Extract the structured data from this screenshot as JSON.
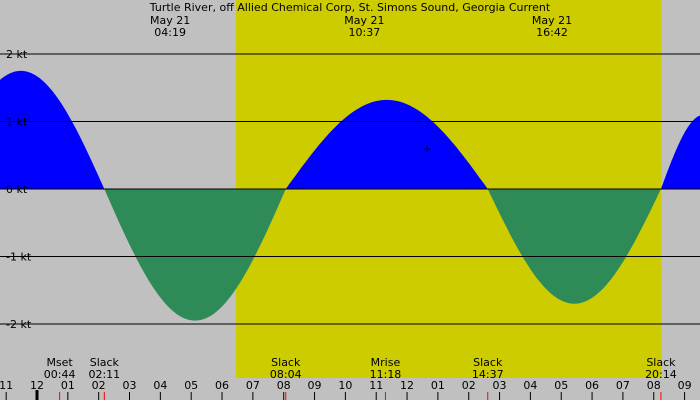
{
  "title": "Turtle River, off Allied Chemical Corp, St. Simons Sound, Georgia Current",
  "colors": {
    "background": "#c0c0c0",
    "daylight": "#cccc00",
    "flood": "#0000ff",
    "ebb": "#2e8b57",
    "gridline": "#000000",
    "tick_red": "#ff0000"
  },
  "header_labels": [
    {
      "date": "May 21",
      "time": "04:19",
      "hour": 4.317
    },
    {
      "date": "May 21",
      "time": "10:37",
      "hour": 10.617
    },
    {
      "date": "May 21",
      "time": "16:42",
      "hour": 16.7
    }
  ],
  "events": [
    {
      "name": "Mset",
      "time": "00:44",
      "hour": 0.733
    },
    {
      "name": "Slack",
      "time": "02:11",
      "hour": 2.183
    },
    {
      "name": "Slack",
      "time": "08:04",
      "hour": 8.067
    },
    {
      "name": "Mrise",
      "time": "11:18",
      "hour": 11.3
    },
    {
      "name": "Slack",
      "time": "14:37",
      "hour": 14.617
    },
    {
      "name": "Slack",
      "time": "20:14",
      "hour": 20.233
    }
  ],
  "chart_data": {
    "type": "area",
    "title": "Turtle River, off Allied Chemical Corp, St. Simons Sound, Georgia Current",
    "unit": "kt",
    "xlim": [
      -1.2,
      21.5
    ],
    "ylim": [
      -2.4,
      2.6
    ],
    "y_ticks": [
      {
        "value": 2,
        "label": "2 kt"
      },
      {
        "value": 1,
        "label": "1 kt"
      },
      {
        "value": 0,
        "label": "0 kt"
      },
      {
        "value": -1,
        "label": "-1 kt"
      },
      {
        "value": -2,
        "label": "-2 kt"
      }
    ],
    "x_tick_labels": [
      {
        "hour": -1,
        "label": "11"
      },
      {
        "hour": 0,
        "label": "12"
      },
      {
        "hour": 1,
        "label": "01"
      },
      {
        "hour": 2,
        "label": "02"
      },
      {
        "hour": 3,
        "label": "03"
      },
      {
        "hour": 4,
        "label": "04"
      },
      {
        "hour": 5,
        "label": "05"
      },
      {
        "hour": 6,
        "label": "06"
      },
      {
        "hour": 7,
        "label": "07"
      },
      {
        "hour": 8,
        "label": "08"
      },
      {
        "hour": 9,
        "label": "09"
      },
      {
        "hour": 10,
        "label": "10"
      },
      {
        "hour": 11,
        "label": "11"
      },
      {
        "hour": 12,
        "label": "12"
      },
      {
        "hour": 13,
        "label": "01"
      },
      {
        "hour": 14,
        "label": "02"
      },
      {
        "hour": 15,
        "label": "03"
      },
      {
        "hour": 16,
        "label": "04"
      },
      {
        "hour": 17,
        "label": "05"
      },
      {
        "hour": 18,
        "label": "06"
      },
      {
        "hour": 19,
        "label": "07"
      },
      {
        "hour": 20,
        "label": "08"
      },
      {
        "hour": 21,
        "label": "09"
      }
    ],
    "daylight_hours": [
      6.45,
      20.25
    ],
    "slack_hours": [
      -1.2,
      2.183,
      8.067,
      14.617,
      20.233,
      21.5
    ],
    "peak_currents": [
      1.75,
      -1.95,
      1.32,
      -1.7,
      1.1
    ],
    "current_marker": {
      "hour": 12.65,
      "value": 0.6,
      "symbol": "+"
    },
    "grid": true
  }
}
